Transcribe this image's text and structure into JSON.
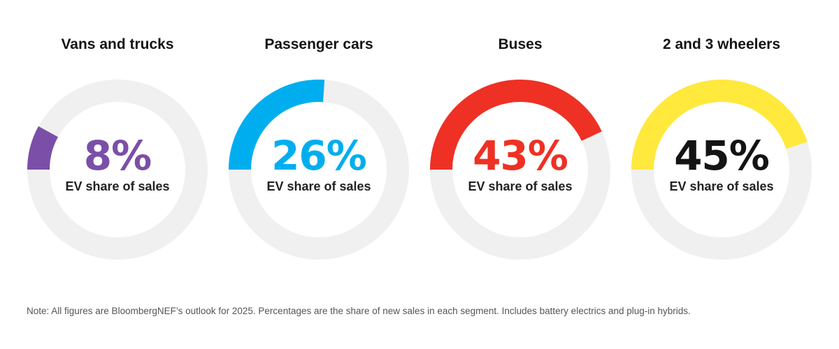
{
  "chart_data": [
    {
      "type": "pie",
      "title": "Vans and trucks",
      "value": 8,
      "value_label": "8%",
      "sublabel": "EV share of sales",
      "color": "#7B4FA8",
      "track_color": "#F0F0F0"
    },
    {
      "type": "pie",
      "title": "Passenger cars",
      "value": 26,
      "value_label": "26%",
      "sublabel": "EV share of sales",
      "color": "#00AEEF",
      "track_color": "#F0F0F0"
    },
    {
      "type": "pie",
      "title": "Buses",
      "value": 43,
      "value_label": "43%",
      "sublabel": "EV share of sales",
      "color": "#EE3124",
      "track_color": "#F0F0F0"
    },
    {
      "type": "pie",
      "title": "2 and 3 wheelers",
      "value": 45,
      "value_label": "45%",
      "sublabel": "EV share of sales",
      "color": "#FFE93D",
      "value_text_color": "#141414",
      "track_color": "#F0F0F0"
    }
  ],
  "note": "Note: All figures are BloombergNEF’s outlook for 2025. Percentages are the share of new sales in each segment. Includes battery electrics and plug-in hybrids."
}
